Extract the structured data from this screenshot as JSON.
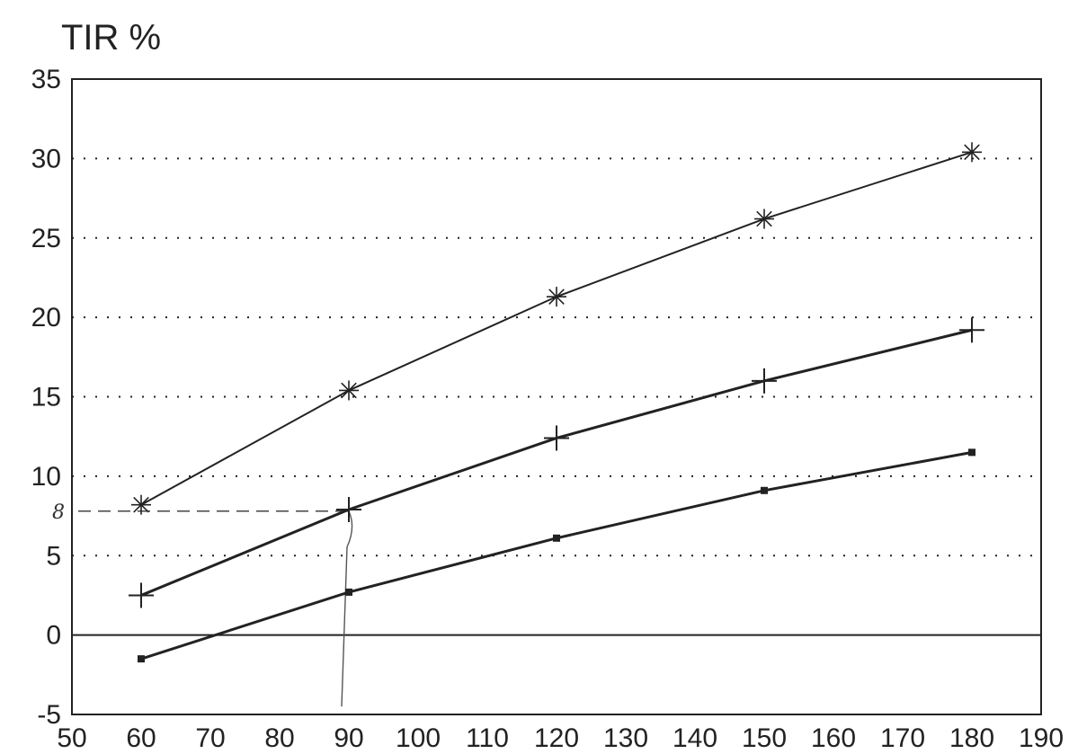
{
  "chart_data": {
    "type": "line",
    "title": "TIR %",
    "xlim": [
      50,
      190
    ],
    "ylim": [
      -5,
      35
    ],
    "x_ticks": [
      50,
      60,
      70,
      80,
      90,
      100,
      110,
      120,
      130,
      140,
      150,
      160,
      170,
      180,
      190
    ],
    "y_ticks": [
      -5,
      0,
      5,
      10,
      15,
      20,
      25,
      30,
      35
    ],
    "grid": "horizontal-dotted",
    "x": [
      60,
      90,
      120,
      150,
      180
    ],
    "series": [
      {
        "marker": "asterisk",
        "values": [
          8.2,
          15.4,
          21.3,
          26.2,
          30.4
        ]
      },
      {
        "marker": "plus",
        "values": [
          2.5,
          7.9,
          12.4,
          16.0,
          19.2
        ]
      },
      {
        "marker": "square",
        "values": [
          -1.5,
          2.7,
          6.1,
          9.1,
          11.5
        ]
      }
    ],
    "annotations": [
      {
        "text": "8",
        "handwritten": true,
        "y": 7.8,
        "x_from": 60,
        "x_to": 90
      }
    ]
  }
}
